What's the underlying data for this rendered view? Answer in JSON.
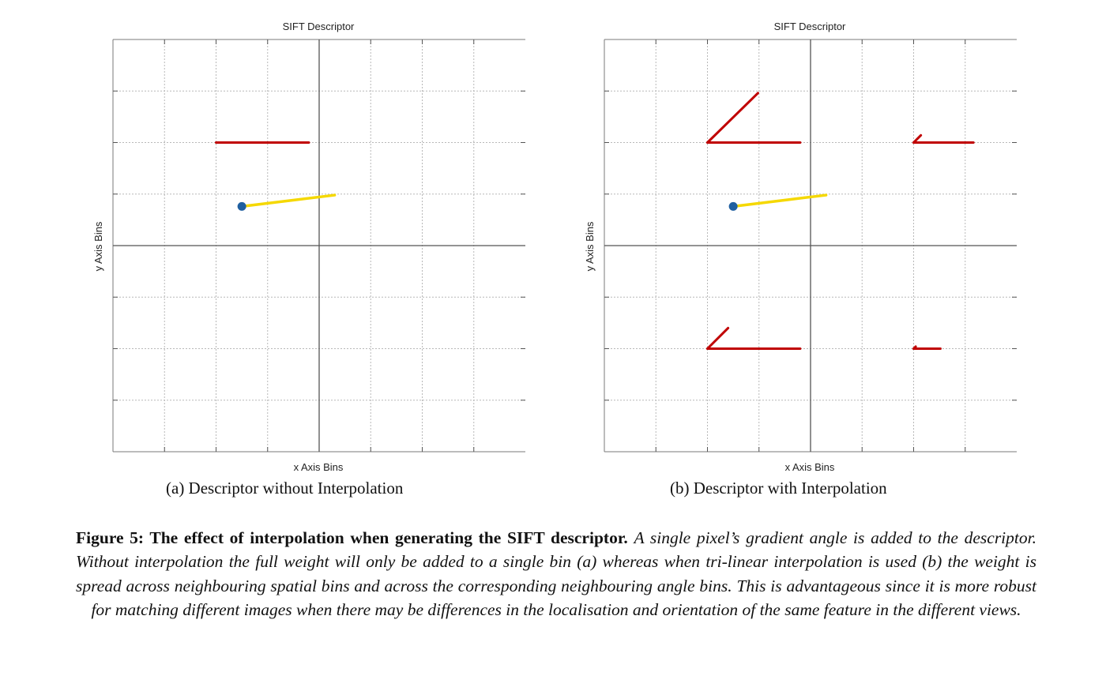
{
  "panels": [
    {
      "id": "a",
      "title": "SIFT Descriptor",
      "xlabel": "x Axis Bins",
      "ylabel": "y Axis Bins",
      "subcaption": "(a) Descriptor without Interpolation"
    },
    {
      "id": "b",
      "title": "SIFT Descriptor",
      "xlabel": "x Axis Bins",
      "ylabel": "y Axis Bins",
      "subcaption": "(b) Descriptor with Interpolation"
    }
  ],
  "caption": {
    "lead": "Figure 5: The effect of interpolation when generating the SIFT descriptor.",
    "body": "A single pixel’s gradient angle is added to the descriptor. Without interpolation the full weight will only be added to a single bin (a) whereas when tri-linear interpolation is used (b) the weight is spread across neighbouring spatial bins and across the corresponding neighbouring angle bins. This is advantageous since it is more robust for matching different images when there may be differences in the localisation and orientation of the same feature in the different views."
  },
  "chart_data": [
    {
      "type": "line",
      "title": "SIFT Descriptor",
      "xlabel": "x Axis Bins",
      "ylabel": "y Axis Bins",
      "xlim": [
        -2,
        2
      ],
      "ylim": [
        -2,
        2
      ],
      "grid": true,
      "grid_step": 0.5,
      "colors": {
        "descriptor": "#c00000",
        "gradient": "#f5d800",
        "pixel": "#1f5fa0",
        "grid": "#b8b8b8",
        "axis": "#555555"
      },
      "pixel": {
        "x": -0.75,
        "y": 0.38
      },
      "gradient": {
        "x": [
          -0.75,
          0.15
        ],
        "y": [
          0.38,
          0.49
        ]
      },
      "descriptor_vectors": [
        {
          "x": [
            -1.0,
            -0.1
          ],
          "y": [
            1.0,
            1.0
          ]
        }
      ]
    },
    {
      "type": "line",
      "title": "SIFT Descriptor",
      "xlabel": "x Axis Bins",
      "ylabel": "y Axis Bins",
      "xlim": [
        -2,
        2
      ],
      "ylim": [
        -2,
        2
      ],
      "grid": true,
      "grid_step": 0.5,
      "colors": {
        "descriptor": "#c00000",
        "gradient": "#f5d800",
        "pixel": "#1f5fa0",
        "grid": "#b8b8b8",
        "axis": "#555555"
      },
      "pixel": {
        "x": -0.75,
        "y": 0.38
      },
      "gradient": {
        "x": [
          -0.75,
          0.15
        ],
        "y": [
          0.38,
          0.49
        ]
      },
      "descriptor_vectors": [
        {
          "x": [
            -1.0,
            -0.1
          ],
          "y": [
            1.0,
            1.0
          ]
        },
        {
          "x": [
            -1.0,
            -0.51
          ],
          "y": [
            1.0,
            1.48
          ]
        },
        {
          "x": [
            1.0,
            1.58
          ],
          "y": [
            1.0,
            1.0
          ]
        },
        {
          "x": [
            1.0,
            1.07
          ],
          "y": [
            1.0,
            1.07
          ]
        },
        {
          "x": [
            -1.0,
            -0.1
          ],
          "y": [
            -1.0,
            -1.0
          ]
        },
        {
          "x": [
            -1.0,
            -0.8
          ],
          "y": [
            -1.0,
            -0.8
          ]
        },
        {
          "x": [
            1.0,
            1.26
          ],
          "y": [
            -1.0,
            -1.0
          ]
        },
        {
          "x": [
            1.0,
            1.02
          ],
          "y": [
            -1.0,
            -0.98
          ]
        }
      ]
    }
  ]
}
